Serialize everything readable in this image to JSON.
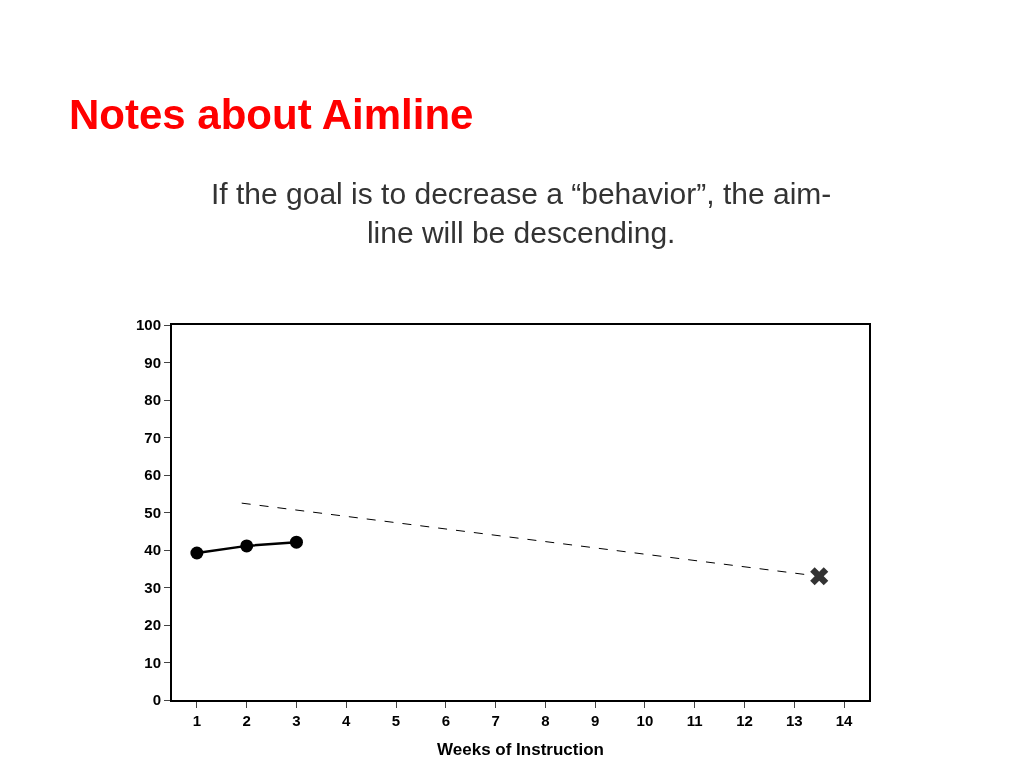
{
  "chart_data": {
    "type": "line",
    "title": "Notes about Aimline",
    "subtitle": "If the goal is to decrease a “behavior”, the aim-\nline will be descending.",
    "xlabel": "Weeks of Instruction",
    "x": [
      1,
      2,
      3
    ],
    "series": [
      {
        "color": "#000000",
        "values": [
          39.2,
          41.1,
          42.1
        ],
        "marker": "circle",
        "line_style": "solid"
      },
      {
        "color": "#000000",
        "x": [
          1.9,
          13.2
        ],
        "values": [
          52.5,
          33.5
        ],
        "marker": "none",
        "line_style": "dashed"
      },
      {
        "type": "scatter",
        "color": "#333333",
        "x": [
          13.5
        ],
        "values": [
          33
        ],
        "marker": "cross"
      }
    ],
    "xlim": [
      0.5,
      14.5
    ],
    "xticks": [
      1,
      2,
      3,
      4,
      5,
      6,
      7,
      8,
      9,
      10,
      11,
      12,
      13,
      14
    ],
    "ylim": [
      0,
      100
    ],
    "yticks": [
      0,
      10,
      20,
      30,
      40,
      50,
      60,
      70,
      80,
      90,
      100
    ],
    "grid": false
  }
}
